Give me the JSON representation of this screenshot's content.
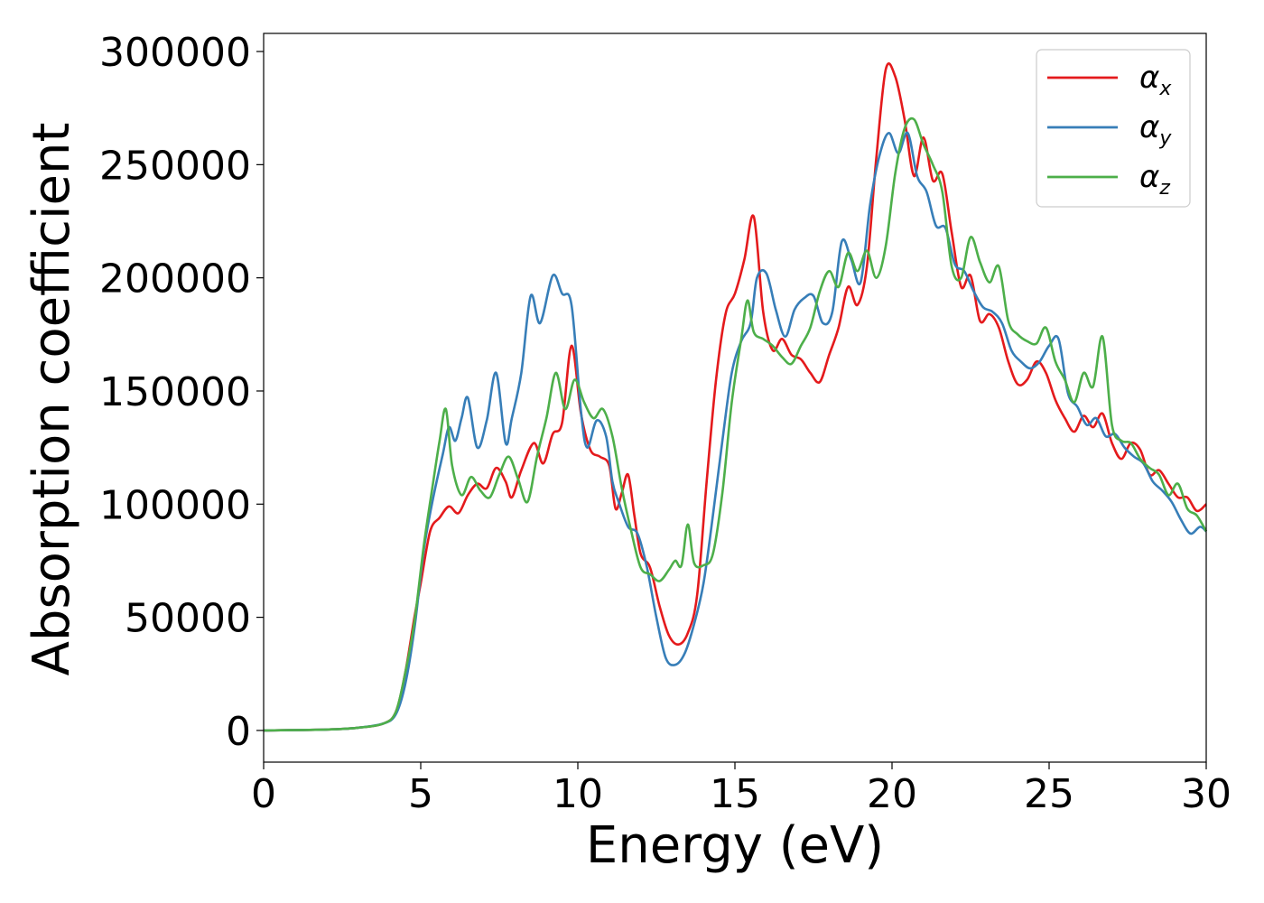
{
  "chart_data": {
    "type": "line",
    "xlabel": "Energy (eV)",
    "ylabel": "Absorption coefficient",
    "xlim": [
      0,
      30
    ],
    "ylim": [
      -14000,
      308000
    ],
    "xticks": [
      0,
      5,
      10,
      15,
      20,
      25,
      30
    ],
    "yticks": [
      0,
      50000,
      100000,
      150000,
      200000,
      250000,
      300000
    ],
    "grid": false,
    "legend_position": "top-right",
    "series": [
      {
        "name": "α",
        "subscript": "x",
        "color": "#e41a1c",
        "points": [
          [
            0,
            0
          ],
          [
            2,
            400
          ],
          [
            3,
            1200
          ],
          [
            3.8,
            3000
          ],
          [
            4.2,
            8000
          ],
          [
            4.5,
            25000
          ],
          [
            4.8,
            50000
          ],
          [
            5,
            65000
          ],
          [
            5.3,
            88000
          ],
          [
            5.6,
            94000
          ],
          [
            5.9,
            99000
          ],
          [
            6.2,
            96000
          ],
          [
            6.5,
            104000
          ],
          [
            6.8,
            109000
          ],
          [
            7.1,
            107000
          ],
          [
            7.4,
            116000
          ],
          [
            7.7,
            110000
          ],
          [
            7.9,
            103000
          ],
          [
            8.2,
            115000
          ],
          [
            8.6,
            127000
          ],
          [
            8.9,
            118000
          ],
          [
            9.2,
            131000
          ],
          [
            9.5,
            136000
          ],
          [
            9.8,
            170000
          ],
          [
            10.1,
            140000
          ],
          [
            10.4,
            124000
          ],
          [
            10.7,
            121000
          ],
          [
            11,
            117000
          ],
          [
            11.2,
            98000
          ],
          [
            11.4,
            105000
          ],
          [
            11.6,
            113000
          ],
          [
            11.8,
            95000
          ],
          [
            12,
            78000
          ],
          [
            12.3,
            72000
          ],
          [
            12.6,
            55000
          ],
          [
            12.9,
            42000
          ],
          [
            13.2,
            38000
          ],
          [
            13.5,
            43000
          ],
          [
            13.8,
            60000
          ],
          [
            14.1,
            110000
          ],
          [
            14.4,
            155000
          ],
          [
            14.7,
            184000
          ],
          [
            15,
            193000
          ],
          [
            15.3,
            208000
          ],
          [
            15.6,
            227000
          ],
          [
            15.9,
            185000
          ],
          [
            16.2,
            168000
          ],
          [
            16.5,
            173000
          ],
          [
            16.8,
            166000
          ],
          [
            17.1,
            164000
          ],
          [
            17.4,
            158000
          ],
          [
            17.7,
            154000
          ],
          [
            18,
            166000
          ],
          [
            18.3,
            178000
          ],
          [
            18.6,
            196000
          ],
          [
            18.9,
            188000
          ],
          [
            19.2,
            205000
          ],
          [
            19.5,
            253000
          ],
          [
            19.8,
            292000
          ],
          [
            20.1,
            289000
          ],
          [
            20.4,
            270000
          ],
          [
            20.7,
            245000
          ],
          [
            21,
            262000
          ],
          [
            21.3,
            243000
          ],
          [
            21.6,
            246000
          ],
          [
            21.9,
            220000
          ],
          [
            22.2,
            196000
          ],
          [
            22.5,
            201000
          ],
          [
            22.8,
            181000
          ],
          [
            23.1,
            184000
          ],
          [
            23.4,
            178000
          ],
          [
            23.7,
            163000
          ],
          [
            24,
            153000
          ],
          [
            24.3,
            155000
          ],
          [
            24.6,
            163000
          ],
          [
            24.9,
            158000
          ],
          [
            25.2,
            146000
          ],
          [
            25.5,
            138000
          ],
          [
            25.8,
            132000
          ],
          [
            26.1,
            139000
          ],
          [
            26.4,
            134000
          ],
          [
            26.7,
            140000
          ],
          [
            27,
            127000
          ],
          [
            27.3,
            120000
          ],
          [
            27.6,
            127000
          ],
          [
            27.9,
            124000
          ],
          [
            28.2,
            113000
          ],
          [
            28.5,
            115000
          ],
          [
            28.8,
            109000
          ],
          [
            29.1,
            103000
          ],
          [
            29.4,
            103000
          ],
          [
            29.7,
            97000
          ],
          [
            30,
            100000
          ]
        ]
      },
      {
        "name": "α",
        "subscript": "y",
        "color": "#377eb8",
        "points": [
          [
            0,
            0
          ],
          [
            2,
            400
          ],
          [
            3,
            1200
          ],
          [
            3.8,
            3000
          ],
          [
            4.2,
            7000
          ],
          [
            4.5,
            20000
          ],
          [
            4.8,
            45000
          ],
          [
            5.1,
            80000
          ],
          [
            5.4,
            103000
          ],
          [
            5.7,
            122000
          ],
          [
            5.9,
            134000
          ],
          [
            6.1,
            128000
          ],
          [
            6.3,
            138000
          ],
          [
            6.5,
            147000
          ],
          [
            6.8,
            125000
          ],
          [
            7.1,
            137000
          ],
          [
            7.4,
            158000
          ],
          [
            7.7,
            127000
          ],
          [
            7.9,
            138000
          ],
          [
            8.2,
            158000
          ],
          [
            8.5,
            192000
          ],
          [
            8.8,
            180000
          ],
          [
            9.2,
            201000
          ],
          [
            9.5,
            193000
          ],
          [
            9.8,
            188000
          ],
          [
            10.1,
            141000
          ],
          [
            10.3,
            125000
          ],
          [
            10.6,
            137000
          ],
          [
            10.9,
            130000
          ],
          [
            11.1,
            110000
          ],
          [
            11.3,
            101000
          ],
          [
            11.6,
            90000
          ],
          [
            11.9,
            87000
          ],
          [
            12.2,
            72000
          ],
          [
            12.5,
            50000
          ],
          [
            12.8,
            32000
          ],
          [
            13.1,
            29000
          ],
          [
            13.4,
            34000
          ],
          [
            13.7,
            47000
          ],
          [
            14,
            65000
          ],
          [
            14.3,
            95000
          ],
          [
            14.6,
            128000
          ],
          [
            14.9,
            158000
          ],
          [
            15.2,
            172000
          ],
          [
            15.5,
            180000
          ],
          [
            15.7,
            200000
          ],
          [
            16,
            202000
          ],
          [
            16.3,
            186000
          ],
          [
            16.6,
            174000
          ],
          [
            16.9,
            186000
          ],
          [
            17.2,
            191000
          ],
          [
            17.5,
            192000
          ],
          [
            17.8,
            180000
          ],
          [
            18.1,
            185000
          ],
          [
            18.4,
            216000
          ],
          [
            18.7,
            208000
          ],
          [
            19,
            198000
          ],
          [
            19.3,
            232000
          ],
          [
            19.6,
            254000
          ],
          [
            19.9,
            264000
          ],
          [
            20.2,
            255000
          ],
          [
            20.5,
            264000
          ],
          [
            20.8,
            245000
          ],
          [
            21.1,
            238000
          ],
          [
            21.4,
            223000
          ],
          [
            21.7,
            222000
          ],
          [
            22,
            206000
          ],
          [
            22.3,
            203000
          ],
          [
            22.6,
            194000
          ],
          [
            22.9,
            187000
          ],
          [
            23.2,
            185000
          ],
          [
            23.5,
            180000
          ],
          [
            23.8,
            168000
          ],
          [
            24.1,
            163000
          ],
          [
            24.4,
            160000
          ],
          [
            24.7,
            163000
          ],
          [
            25,
            170000
          ],
          [
            25.3,
            173000
          ],
          [
            25.6,
            149000
          ],
          [
            25.9,
            143000
          ],
          [
            26.2,
            135000
          ],
          [
            26.5,
            138000
          ],
          [
            26.8,
            130000
          ],
          [
            27.1,
            131000
          ],
          [
            27.4,
            125000
          ],
          [
            27.7,
            121000
          ],
          [
            28,
            118000
          ],
          [
            28.3,
            110000
          ],
          [
            28.6,
            106000
          ],
          [
            28.9,
            101000
          ],
          [
            29.2,
            93000
          ],
          [
            29.5,
            87000
          ],
          [
            29.8,
            90000
          ],
          [
            30,
            88000
          ]
        ]
      },
      {
        "name": "α",
        "subscript": "z",
        "color": "#4daf4a",
        "points": [
          [
            0,
            0
          ],
          [
            2,
            400
          ],
          [
            3,
            1200
          ],
          [
            3.8,
            3000
          ],
          [
            4.2,
            8000
          ],
          [
            4.5,
            25000
          ],
          [
            4.8,
            48000
          ],
          [
            5.1,
            82000
          ],
          [
            5.4,
            110000
          ],
          [
            5.6,
            128000
          ],
          [
            5.8,
            142000
          ],
          [
            6,
            117000
          ],
          [
            6.3,
            104000
          ],
          [
            6.6,
            112000
          ],
          [
            6.9,
            106000
          ],
          [
            7.2,
            103000
          ],
          [
            7.5,
            113000
          ],
          [
            7.8,
            121000
          ],
          [
            8.1,
            111000
          ],
          [
            8.4,
            101000
          ],
          [
            8.7,
            121000
          ],
          [
            9,
            138000
          ],
          [
            9.3,
            158000
          ],
          [
            9.6,
            142000
          ],
          [
            9.9,
            155000
          ],
          [
            10.2,
            145000
          ],
          [
            10.5,
            138000
          ],
          [
            10.8,
            142000
          ],
          [
            11.1,
            130000
          ],
          [
            11.4,
            107000
          ],
          [
            11.7,
            88000
          ],
          [
            12,
            72000
          ],
          [
            12.3,
            69000
          ],
          [
            12.6,
            66000
          ],
          [
            12.9,
            71000
          ],
          [
            13.1,
            75000
          ],
          [
            13.3,
            73000
          ],
          [
            13.5,
            91000
          ],
          [
            13.7,
            74000
          ],
          [
            14,
            73000
          ],
          [
            14.3,
            78000
          ],
          [
            14.6,
            105000
          ],
          [
            14.9,
            145000
          ],
          [
            15.2,
            173000
          ],
          [
            15.4,
            190000
          ],
          [
            15.6,
            176000
          ],
          [
            15.9,
            173000
          ],
          [
            16.2,
            170000
          ],
          [
            16.5,
            165000
          ],
          [
            16.8,
            162000
          ],
          [
            17.1,
            170000
          ],
          [
            17.4,
            178000
          ],
          [
            17.7,
            194000
          ],
          [
            18,
            203000
          ],
          [
            18.3,
            196000
          ],
          [
            18.6,
            211000
          ],
          [
            18.9,
            203000
          ],
          [
            19.2,
            212000
          ],
          [
            19.5,
            200000
          ],
          [
            19.8,
            214000
          ],
          [
            20.1,
            246000
          ],
          [
            20.4,
            266000
          ],
          [
            20.7,
            270000
          ],
          [
            21,
            259000
          ],
          [
            21.3,
            250000
          ],
          [
            21.6,
            238000
          ],
          [
            21.9,
            205000
          ],
          [
            22.2,
            200000
          ],
          [
            22.5,
            218000
          ],
          [
            22.8,
            207000
          ],
          [
            23.1,
            198000
          ],
          [
            23.4,
            205000
          ],
          [
            23.7,
            181000
          ],
          [
            24,
            175000
          ],
          [
            24.3,
            172000
          ],
          [
            24.6,
            171000
          ],
          [
            24.9,
            178000
          ],
          [
            25.2,
            163000
          ],
          [
            25.5,
            155000
          ],
          [
            25.8,
            145000
          ],
          [
            26.1,
            158000
          ],
          [
            26.4,
            152000
          ],
          [
            26.7,
            174000
          ],
          [
            27,
            135000
          ],
          [
            27.3,
            128000
          ],
          [
            27.6,
            127000
          ],
          [
            27.9,
            120000
          ],
          [
            28.2,
            116000
          ],
          [
            28.5,
            113000
          ],
          [
            28.8,
            104000
          ],
          [
            29.1,
            109000
          ],
          [
            29.4,
            98000
          ],
          [
            29.7,
            95000
          ],
          [
            30,
            88000
          ]
        ]
      }
    ]
  }
}
